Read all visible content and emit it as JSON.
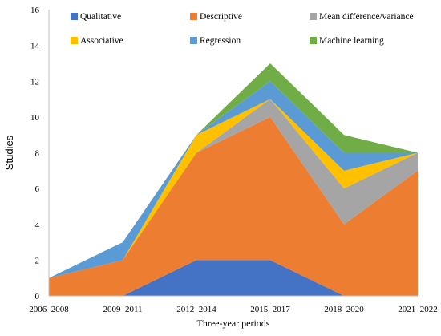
{
  "chart_data": {
    "type": "area",
    "stacked": true,
    "categories": [
      "2006–2008",
      "2009–2011",
      "2012–2014",
      "2015–2017",
      "2018–2020",
      "2021–2022"
    ],
    "xlabel": "Three-year periods",
    "ylabel": "Studies",
    "ylim": [
      0,
      16
    ],
    "yticks": [
      "0",
      "2",
      "4",
      "6",
      "8",
      "10",
      "12",
      "14",
      "16"
    ],
    "grid": false,
    "legend_position": "top",
    "series": [
      {
        "name": "Qualitative",
        "color": "#4472c4",
        "values": [
          0,
          0,
          2,
          2,
          0,
          0
        ]
      },
      {
        "name": "Descriptive",
        "color": "#ed7d31",
        "values": [
          1,
          2,
          6,
          8,
          4,
          7
        ]
      },
      {
        "name": "Mean difference/variance",
        "color": "#a5a5a5",
        "values": [
          0,
          0,
          0,
          1,
          2,
          1
        ]
      },
      {
        "name": "Associative",
        "color": "#ffc000",
        "values": [
          0,
          0,
          1,
          0,
          1,
          0
        ]
      },
      {
        "name": "Regression",
        "color": "#5b9bd5",
        "values": [
          0,
          1,
          0,
          1,
          1,
          0
        ]
      },
      {
        "name": "Machine learning",
        "color": "#70ad47",
        "values": [
          0,
          0,
          0,
          1,
          1,
          0
        ]
      }
    ]
  }
}
